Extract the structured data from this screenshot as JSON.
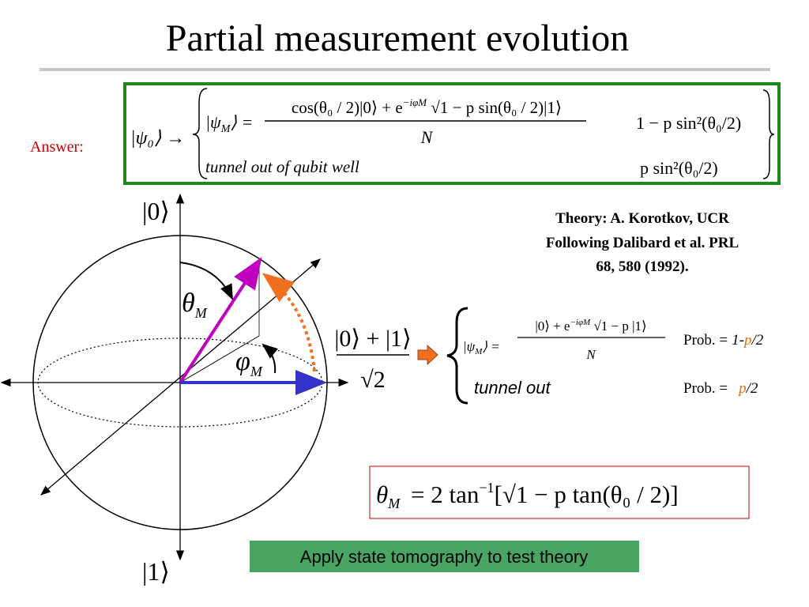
{
  "title": "Partial measurement evolution",
  "answer": {
    "label": "Answer:",
    "initial": "|ψ₀⟩ →",
    "state": "|ψ",
    "state_sub": "M",
    "state_end": "⟩ =",
    "numerator": [
      "cos(θ₀ / 2)|0⟩ + e",
      "−iφM",
      " √1 − p sin(θ₀ / 2)|1⟩"
    ],
    "denominator": "N",
    "prob1": "1 − p sin²(θ₀/2)",
    "tunnel": "tunnel out of  qubit well",
    "prob2": "p sin²(θ₀/2)"
  },
  "credit": [
    "Theory: A. Korotkov, UCR",
    "Following Dalibard et al. PRL",
    "68, 580 (1992)."
  ],
  "sphere": {
    "top": "|0⟩",
    "bottom": "|1⟩",
    "theta": "θ",
    "theta_sub": "M",
    "phi": "φ",
    "phi_sub": "M",
    "superposition_numerator": "|0⟩ + |1⟩",
    "superposition_denominator": "√2"
  },
  "outcome": {
    "state": "|ψ",
    "state_sub": "M",
    "state_end": "⟩ =",
    "numerator": [
      "|0⟩ + e",
      "−iφM",
      " √1 − p |1⟩"
    ],
    "denominator": "N",
    "prob_label": "Prob. =",
    "prob1_lead": "1-",
    "prob1_p": "p",
    "prob1_tail": "/2",
    "tunnel": "tunnel out",
    "prob2_p": "p",
    "prob2_tail": "/2"
  },
  "formula": {
    "lhs": "θ",
    "lhs_sub": "M",
    "rhs": " = 2 tan",
    "sup": "−1",
    "arg": "[√1 − p tan(θ₀ / 2)]"
  },
  "button": "Apply state tomography to test theory"
}
